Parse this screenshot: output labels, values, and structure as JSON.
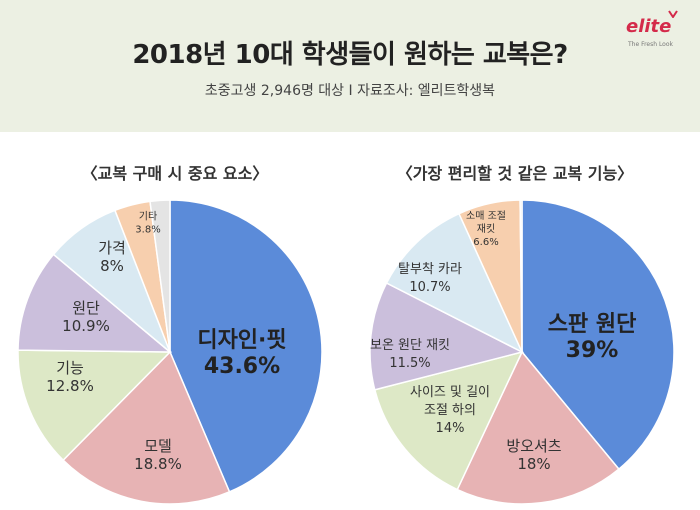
{
  "header": {
    "title": "2018년 10대 학생들이 원하는 교복은?",
    "subtitle": "초중고생 2,946명 대상 I 자료조사: 엘리트학생복",
    "logo_text": "elite",
    "logo_tagline": "The Fresh Look",
    "background": "#ecf0e3",
    "brand_color": "#d42a4a"
  },
  "chart_data": [
    {
      "type": "pie",
      "title": "〈교복 구매 시 중요 요소〉",
      "categories": [
        "디자인·핏",
        "모델",
        "기능",
        "원단",
        "가격",
        "기타"
      ],
      "values": [
        43.6,
        18.8,
        12.8,
        10.9,
        8,
        3.8
      ],
      "value_labels": [
        "43.6%",
        "18.8%",
        "12.8%",
        "10.9%",
        "8%",
        "3.8%"
      ],
      "colors": [
        "#5b8bd9",
        "#e7b3b4",
        "#dde8c6",
        "#cbbfdc",
        "#d9e9f2",
        "#f7cfae",
        "#e4e4e4"
      ],
      "other_remainder": 2.1
    },
    {
      "type": "pie",
      "title": "〈가장 편리할 것 같은 교복 기능〉",
      "categories": [
        "스판 원단",
        "방오셔츠",
        "사이즈 및 길이 조절 하의",
        "보온 원단 재킷",
        "탈부착 카라",
        "소매 조절 재킷"
      ],
      "values": [
        39,
        18,
        14,
        11.5,
        10.7,
        6.6
      ],
      "value_labels": [
        "39%",
        "18%",
        "14%",
        "11.5%",
        "10.7%",
        "6.6%"
      ],
      "colors": [
        "#5b8bd9",
        "#e7b3b4",
        "#dde8c6",
        "#cbbfdc",
        "#d9e9f2",
        "#f7cfae",
        "#e4e4e4"
      ],
      "other_remainder": 0.2
    }
  ]
}
